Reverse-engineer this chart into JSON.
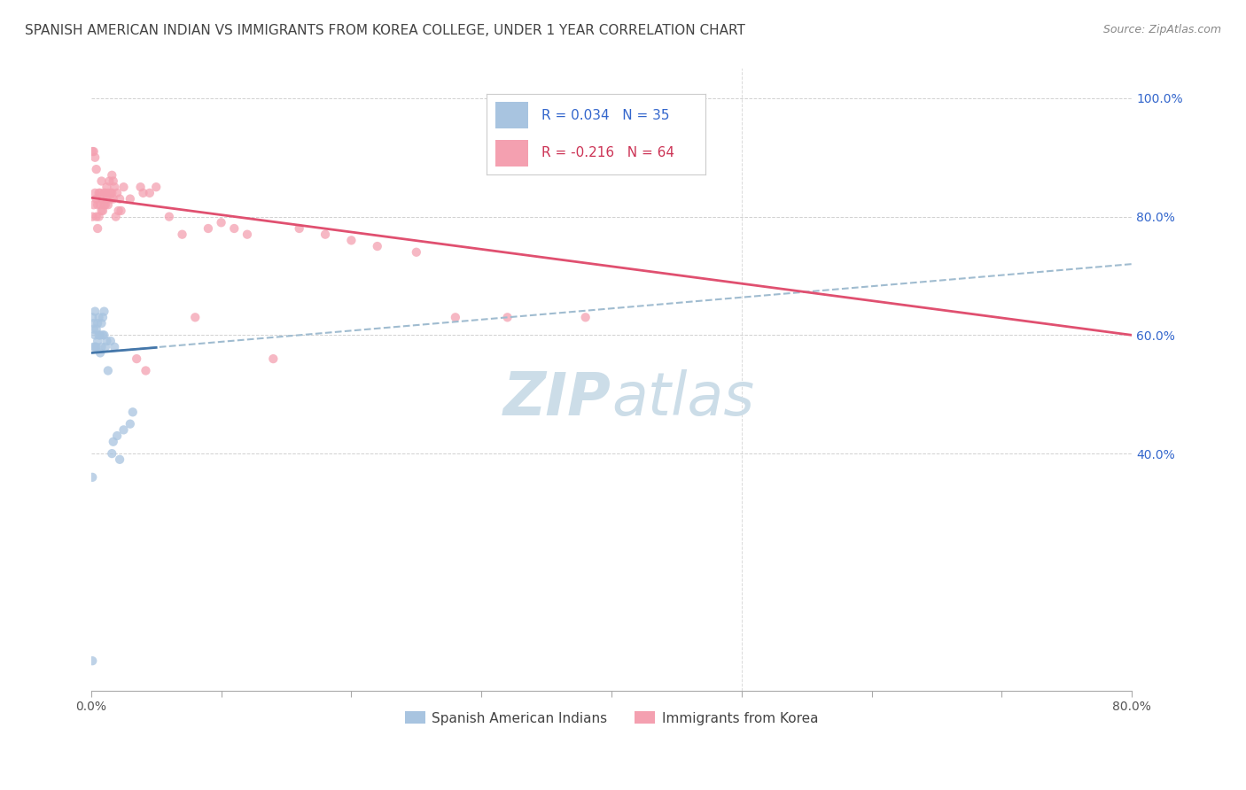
{
  "title": "SPANISH AMERICAN INDIAN VS IMMIGRANTS FROM KOREA COLLEGE, UNDER 1 YEAR CORRELATION CHART",
  "source": "Source: ZipAtlas.com",
  "ylabel_label": "College, Under 1 year",
  "legend_blue_r": "R = 0.034",
  "legend_blue_n": "N = 35",
  "legend_pink_r": "R = -0.216",
  "legend_pink_n": "N = 64",
  "blue_scatter_x": [
    0.001,
    0.002,
    0.002,
    0.003,
    0.003,
    0.004,
    0.005,
    0.005,
    0.006,
    0.006,
    0.007,
    0.007,
    0.008,
    0.008,
    0.009,
    0.009,
    0.01,
    0.01,
    0.011,
    0.012,
    0.013,
    0.015,
    0.016,
    0.017,
    0.018,
    0.02,
    0.022,
    0.025,
    0.03,
    0.032,
    0.001,
    0.002,
    0.003,
    0.004,
    0.001
  ],
  "blue_scatter_y": [
    0.05,
    0.58,
    0.62,
    0.6,
    0.64,
    0.58,
    0.59,
    0.62,
    0.6,
    0.63,
    0.57,
    0.6,
    0.58,
    0.62,
    0.6,
    0.63,
    0.6,
    0.64,
    0.58,
    0.59,
    0.54,
    0.59,
    0.4,
    0.42,
    0.58,
    0.43,
    0.39,
    0.44,
    0.45,
    0.47,
    0.63,
    0.61,
    0.58,
    0.61,
    0.36
  ],
  "pink_scatter_x": [
    0.001,
    0.002,
    0.003,
    0.004,
    0.004,
    0.005,
    0.005,
    0.006,
    0.006,
    0.007,
    0.007,
    0.008,
    0.008,
    0.009,
    0.009,
    0.01,
    0.01,
    0.011,
    0.011,
    0.012,
    0.012,
    0.013,
    0.013,
    0.014,
    0.015,
    0.015,
    0.016,
    0.016,
    0.017,
    0.017,
    0.018,
    0.019,
    0.02,
    0.021,
    0.022,
    0.023,
    0.025,
    0.03,
    0.035,
    0.038,
    0.04,
    0.042,
    0.045,
    0.05,
    0.06,
    0.07,
    0.08,
    0.09,
    0.1,
    0.11,
    0.12,
    0.14,
    0.16,
    0.18,
    0.2,
    0.22,
    0.25,
    0.28,
    0.32,
    0.38,
    0.001,
    0.002,
    0.003,
    0.004
  ],
  "pink_scatter_y": [
    0.8,
    0.82,
    0.84,
    0.8,
    0.83,
    0.82,
    0.78,
    0.84,
    0.8,
    0.82,
    0.84,
    0.86,
    0.81,
    0.83,
    0.81,
    0.82,
    0.84,
    0.82,
    0.84,
    0.85,
    0.83,
    0.82,
    0.84,
    0.86,
    0.84,
    0.83,
    0.84,
    0.87,
    0.83,
    0.86,
    0.85,
    0.8,
    0.84,
    0.81,
    0.83,
    0.81,
    0.85,
    0.83,
    0.56,
    0.85,
    0.84,
    0.54,
    0.84,
    0.85,
    0.8,
    0.77,
    0.63,
    0.78,
    0.79,
    0.78,
    0.77,
    0.56,
    0.78,
    0.77,
    0.76,
    0.75,
    0.74,
    0.63,
    0.63,
    0.63,
    0.91,
    0.91,
    0.9,
    0.88
  ],
  "blue_line_x": [
    0.0,
    0.8
  ],
  "blue_line_y": [
    0.57,
    0.72
  ],
  "pink_line_x": [
    0.0,
    0.8
  ],
  "pink_line_y": [
    0.832,
    0.6
  ],
  "blue_short_line_x": [
    0.0,
    0.05
  ],
  "blue_short_line_y": [
    0.57,
    0.579
  ],
  "xlim": [
    0.0,
    0.8
  ],
  "ylim": [
    0.0,
    1.05
  ],
  "blue_color": "#a8c4e0",
  "pink_color": "#f4a0b0",
  "blue_line_color": "#4477aa",
  "pink_line_color": "#e05070",
  "blue_dash_color": "#a0bcd0",
  "grid_color": "#cccccc",
  "bg_color": "#ffffff",
  "watermark_color": "#ccdde8",
  "title_fontsize": 11,
  "source_fontsize": 9,
  "tick_fontsize": 10,
  "scatter_size": 55,
  "scatter_alpha": 0.75
}
